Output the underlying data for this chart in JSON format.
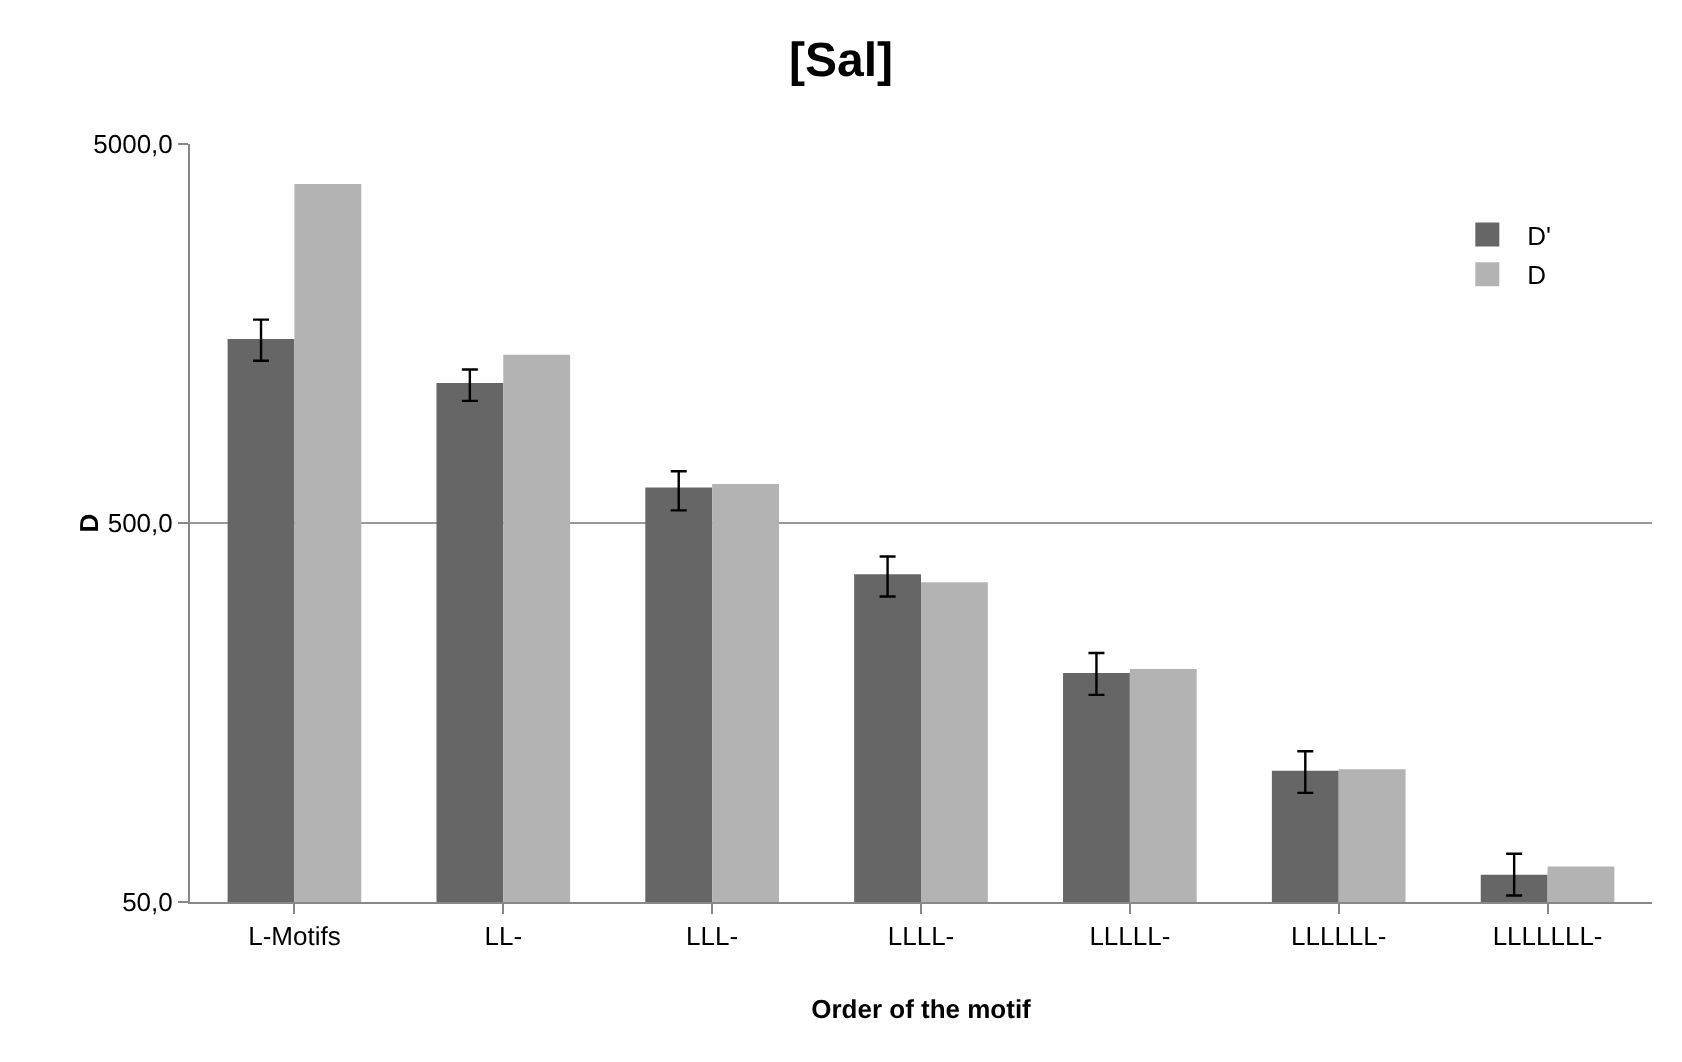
{
  "chart_data": {
    "type": "bar",
    "title": "[Sal]",
    "xlabel": "Order of the motif",
    "ylabel": "D",
    "categories": [
      "L-Motifs",
      "LL-",
      "LLL-",
      "LLLL-",
      "LLLLL-",
      "LLLLLL-",
      "LLLLLLL-"
    ],
    "series": [
      {
        "name": "D'",
        "color": "#666666",
        "values": [
          1530,
          1170,
          620,
          366,
          201,
          111,
          59
        ],
        "errors": [
          [
            1340,
            1720
          ],
          [
            1050,
            1270
          ],
          [
            540,
            685
          ],
          [
            320,
            408
          ],
          [
            176,
            227
          ],
          [
            97,
            125
          ],
          [
            52,
            67
          ]
        ]
      },
      {
        "name": "D",
        "color": "#b3b3b3",
        "values": [
          3920,
          1390,
          634,
          349,
          206,
          112,
          62
        ]
      }
    ],
    "log": true,
    "ylim": [
      50,
      5000
    ],
    "yticks": [
      {
        "value": 50,
        "label": "50,0"
      },
      {
        "value": 500,
        "label": "500,0"
      },
      {
        "value": 5000,
        "label": "5000,0"
      }
    ],
    "grid": "y",
    "legend": "top right"
  }
}
